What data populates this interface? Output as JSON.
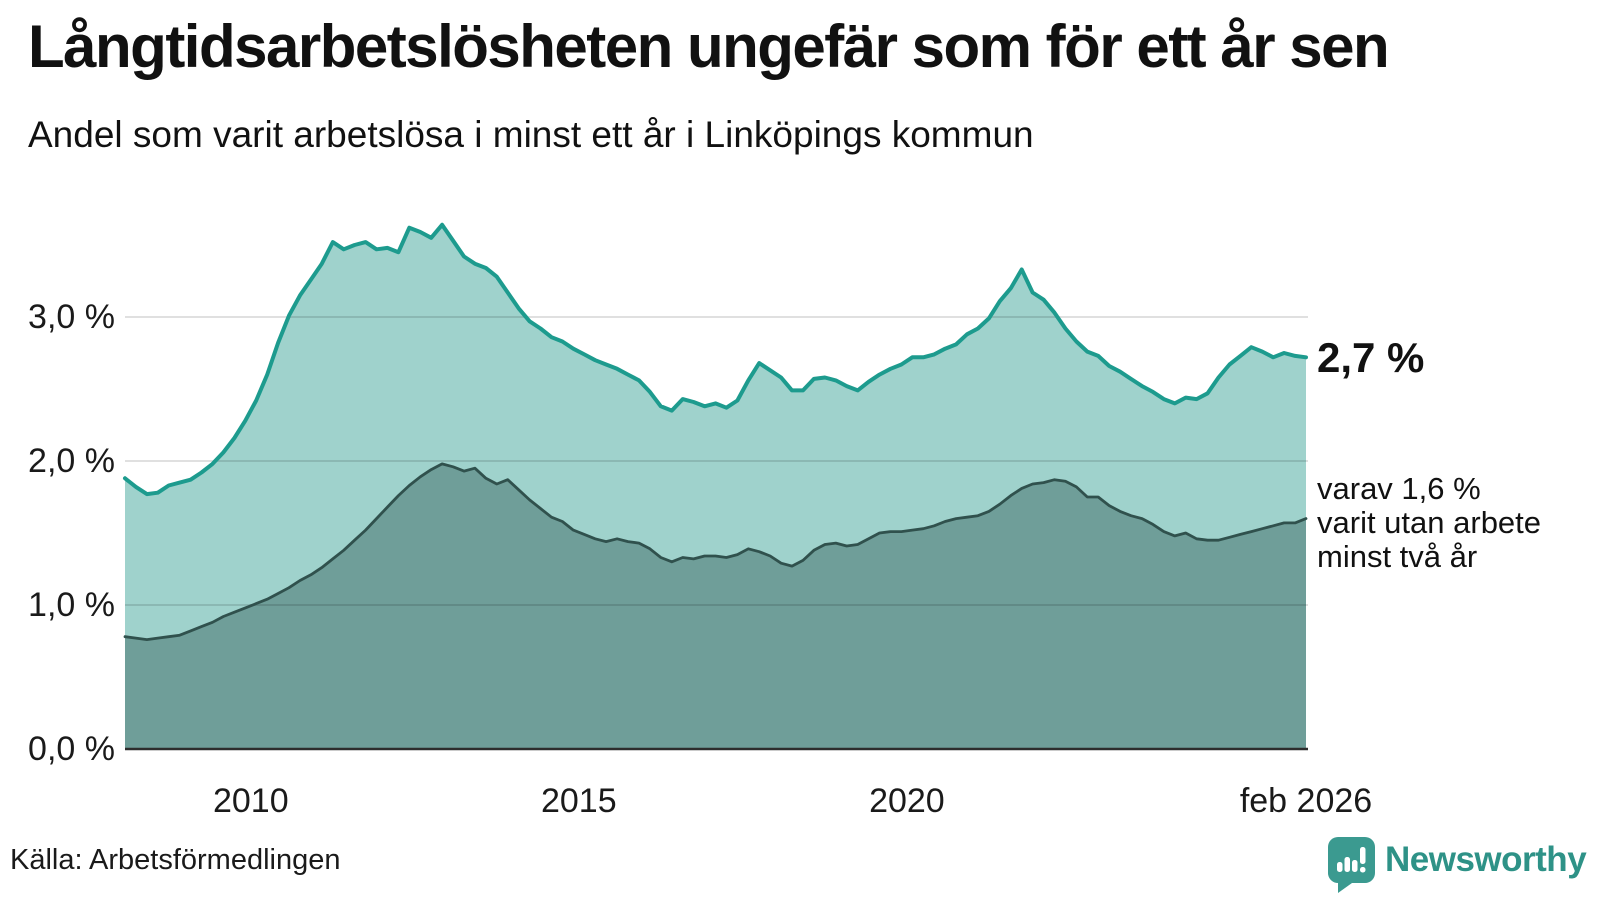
{
  "header": {
    "title": "Långtidsarbetslösheten ungefär som för ett år sen",
    "subtitle": "Andel som varit arbetslösa i minst ett år i Linköpings kommun"
  },
  "annotations": {
    "latest_total": "2,7 %",
    "secondary_lines": [
      "varav 1,6 %",
      "varit utan arbete",
      "minst två år"
    ]
  },
  "source": "Källa: Arbetsförmedlingen",
  "logo": {
    "text": "Newsworthy",
    "icon": "speech-bubble-bar-chart-icon",
    "color": "#2e9287",
    "icon_color": "#3b9a90"
  },
  "colors": {
    "background": "#ffffff",
    "series1_line": "#1d9b8e",
    "series1_fill": "#9fd2cc",
    "series2_line": "#30514d",
    "series2_fill": "#6f9e99",
    "gridline": "rgba(0,0,0,0.12)",
    "baseline": "#2d2d2d",
    "text": "#111111"
  },
  "y_axis": {
    "ticks": [
      {
        "label": "3,0 %",
        "value": 3.0
      },
      {
        "label": "2,0 %",
        "value": 2.0
      },
      {
        "label": "1,0 %",
        "value": 1.0
      },
      {
        "label": "0,0 %",
        "value": 0.0
      }
    ]
  },
  "x_axis": {
    "ticks": [
      {
        "label": "2010",
        "t": 2010.0
      },
      {
        "label": "2015",
        "t": 2015.0
      },
      {
        "label": "2020",
        "t": 2020.0
      },
      {
        "label": "feb 2026",
        "t": 2026.0833
      }
    ]
  },
  "chart_data": {
    "type": "area",
    "title": "Långtidsarbetslösheten ungefär som för ett år sen",
    "subtitle": "Andel som varit arbetslösa i minst ett år i Linköpings kommun",
    "unit": "%",
    "x_start_year": 2008.0833,
    "x_end_year": 2026.0833,
    "x_step_years": 0.1667,
    "x_tick_labels": [
      "2010",
      "2015",
      "2020",
      "feb 2026"
    ],
    "ylim": [
      0,
      3.8
    ],
    "grid": "horizontal",
    "legend_position": "right-annotations",
    "series": [
      {
        "name": "Arbetslösa minst ett år",
        "latest_value": 2.7,
        "latest_label": "2,7 %",
        "line_color": "#1d9b8e",
        "fill_color": "#9fd2cc",
        "values": [
          1.88,
          1.82,
          1.77,
          1.78,
          1.83,
          1.85,
          1.87,
          1.92,
          1.98,
          2.06,
          2.16,
          2.28,
          2.42,
          2.6,
          2.82,
          3.01,
          3.15,
          3.26,
          3.37,
          3.52,
          3.47,
          3.5,
          3.52,
          3.47,
          3.48,
          3.45,
          3.62,
          3.59,
          3.55,
          3.64,
          3.53,
          3.42,
          3.37,
          3.34,
          3.28,
          3.17,
          3.06,
          2.97,
          2.92,
          2.86,
          2.83,
          2.78,
          2.74,
          2.7,
          2.67,
          2.64,
          2.6,
          2.56,
          2.48,
          2.38,
          2.35,
          2.43,
          2.41,
          2.38,
          2.4,
          2.37,
          2.42,
          2.56,
          2.68,
          2.63,
          2.58,
          2.49,
          2.49,
          2.57,
          2.58,
          2.56,
          2.52,
          2.49,
          2.55,
          2.6,
          2.64,
          2.67,
          2.72,
          2.72,
          2.74,
          2.78,
          2.81,
          2.88,
          2.92,
          2.99,
          3.11,
          3.2,
          3.33,
          3.17,
          3.12,
          3.03,
          2.92,
          2.83,
          2.76,
          2.73,
          2.66,
          2.62,
          2.57,
          2.52,
          2.48,
          2.43,
          2.4,
          2.44,
          2.43,
          2.47,
          2.58,
          2.67,
          2.73,
          2.79,
          2.76,
          2.72,
          2.75,
          2.73,
          2.72
        ]
      },
      {
        "name": "Varav arbetslösa minst två år",
        "latest_value": 1.6,
        "latest_label": "varav 1,6 % varit utan arbete minst två år",
        "line_color": "#30514d",
        "fill_color": "#6f9e99",
        "values": [
          0.78,
          0.77,
          0.76,
          0.77,
          0.78,
          0.79,
          0.82,
          0.85,
          0.88,
          0.92,
          0.95,
          0.98,
          1.01,
          1.04,
          1.08,
          1.12,
          1.17,
          1.21,
          1.26,
          1.32,
          1.38,
          1.45,
          1.52,
          1.6,
          1.68,
          1.76,
          1.83,
          1.89,
          1.94,
          1.98,
          1.96,
          1.93,
          1.95,
          1.88,
          1.84,
          1.87,
          1.8,
          1.73,
          1.67,
          1.61,
          1.58,
          1.52,
          1.49,
          1.46,
          1.44,
          1.46,
          1.44,
          1.43,
          1.39,
          1.33,
          1.3,
          1.33,
          1.32,
          1.34,
          1.34,
          1.33,
          1.35,
          1.39,
          1.37,
          1.34,
          1.29,
          1.27,
          1.31,
          1.38,
          1.42,
          1.43,
          1.41,
          1.42,
          1.46,
          1.5,
          1.51,
          1.51,
          1.52,
          1.53,
          1.55,
          1.58,
          1.6,
          1.61,
          1.62,
          1.65,
          1.7,
          1.76,
          1.81,
          1.84,
          1.85,
          1.87,
          1.86,
          1.82,
          1.75,
          1.75,
          1.69,
          1.65,
          1.62,
          1.6,
          1.56,
          1.51,
          1.48,
          1.5,
          1.46,
          1.45,
          1.45,
          1.47,
          1.49,
          1.51,
          1.53,
          1.55,
          1.57,
          1.57,
          1.6
        ]
      }
    ]
  }
}
